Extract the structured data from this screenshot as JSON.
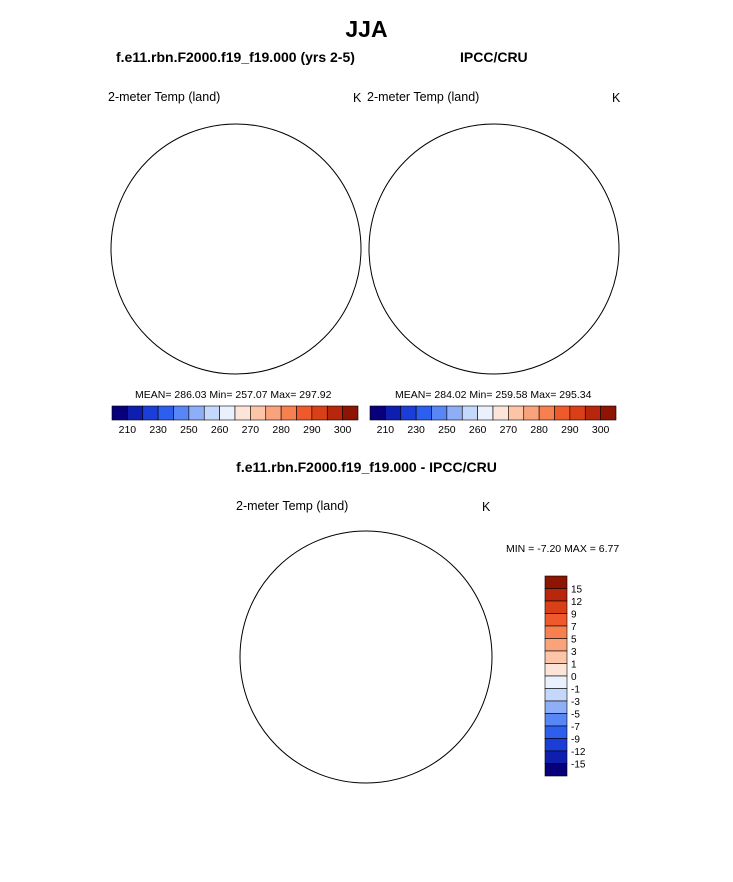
{
  "title": "JJA",
  "top_left": {
    "case": "f.e11.rbn.F2000.f19_f19.000 (yrs 2-5)",
    "variable": "2-meter Temp (land)",
    "units": "K",
    "stats": "MEAN= 286.03  Min= 257.07  Max= 297.92"
  },
  "top_right": {
    "case": "IPCC/CRU",
    "variable": "2-meter Temp (land)",
    "units": "K",
    "stats": "MEAN= 284.02  Min= 259.58  Max= 295.34"
  },
  "diff": {
    "case": "f.e11.rbn.F2000.f19_f19.000 - IPCC/CRU",
    "variable": "2-meter Temp (land)",
    "units": "K",
    "stats": "MIN =  -7.20 MAX =   6.77"
  },
  "abs_colorbar": {
    "ticks": [
      "210",
      "230",
      "250",
      "260",
      "270",
      "280",
      "290",
      "300"
    ],
    "colors": [
      "#08007a",
      "#0e1fb0",
      "#1c3ed8",
      "#2c5fee",
      "#5886f4",
      "#8eaef7",
      "#c4d8fb",
      "#ebf0fd",
      "#fde4d8",
      "#fcc5a8",
      "#f9a27c",
      "#f6804f",
      "#ef5a2c",
      "#d94017",
      "#b8260b",
      "#8e1404"
    ]
  },
  "diff_colorbar": {
    "ticks": [
      "15",
      "12",
      "9",
      "7",
      "5",
      "3",
      "1",
      "0",
      "-1",
      "-3",
      "-5",
      "-7",
      "-9",
      "-12",
      "-15"
    ],
    "colors": [
      "#8e1404",
      "#b8260b",
      "#d94017",
      "#ef5a2c",
      "#f6804f",
      "#f9a27c",
      "#fcc5a8",
      "#fde4d8",
      "#ebf0fd",
      "#c4d8fb",
      "#8eaef7",
      "#5886f4",
      "#2c5fee",
      "#1c3ed8",
      "#0e1fb0",
      "#08007a"
    ]
  }
}
